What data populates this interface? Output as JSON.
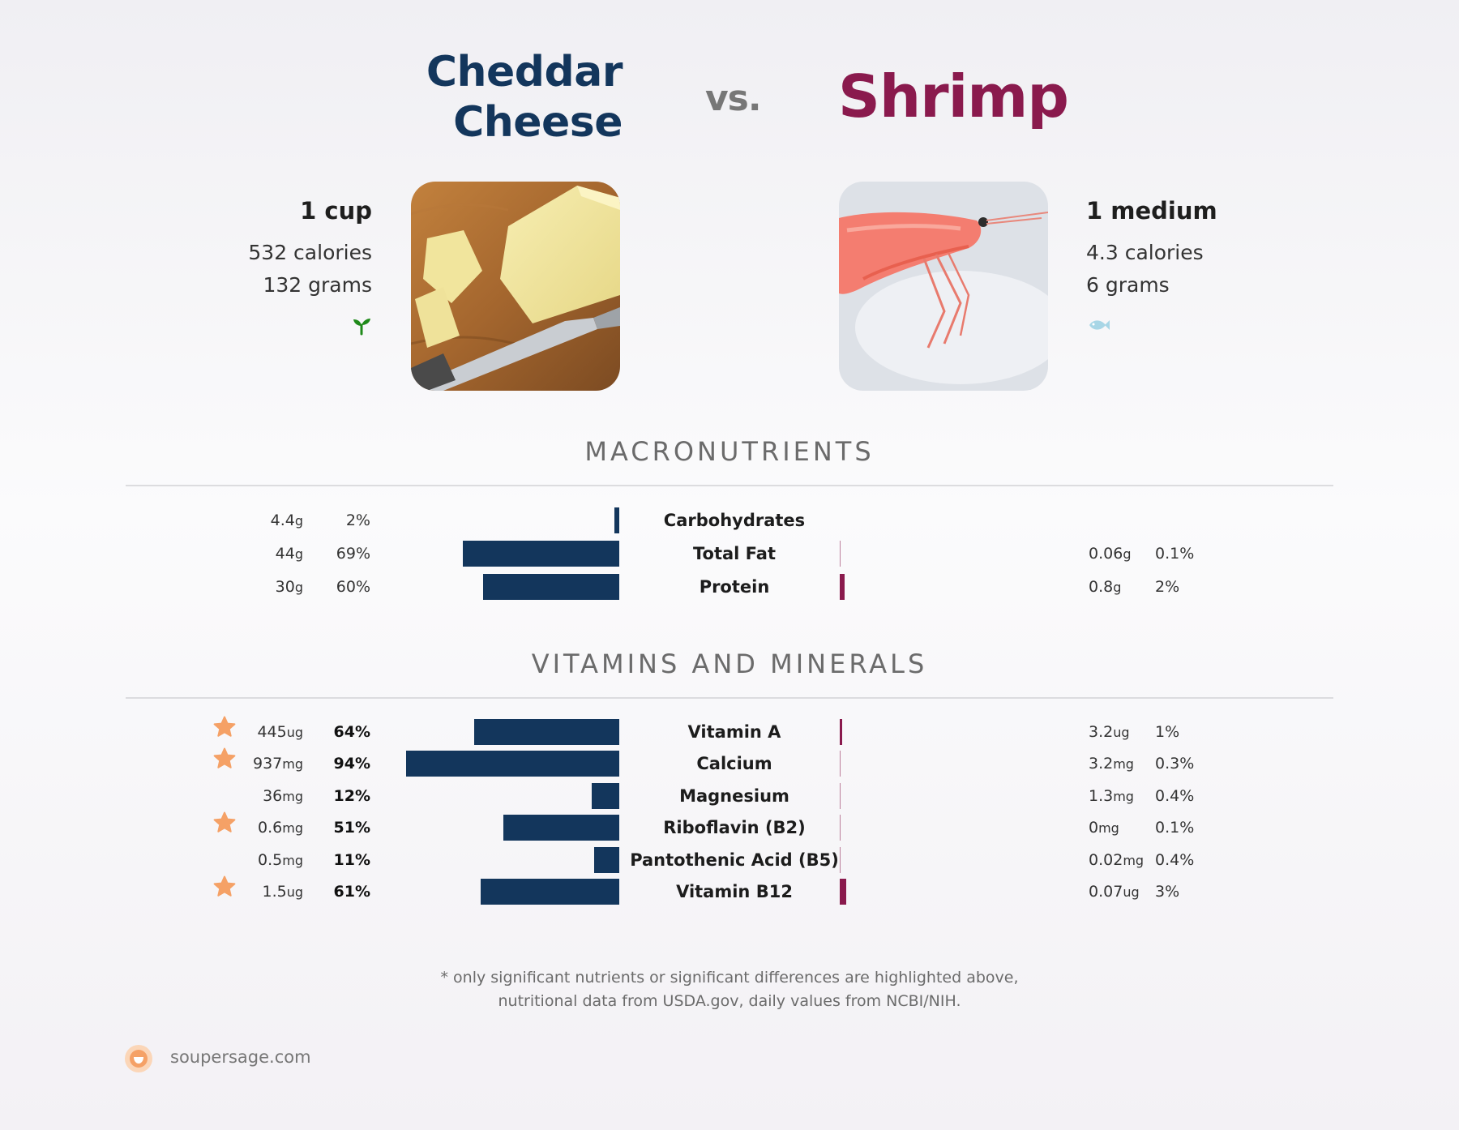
{
  "header": {
    "left_title_line1": "Cheddar",
    "left_title_line2": "Cheese",
    "vs": "vs.",
    "right_title": "Shrimp"
  },
  "colors": {
    "left": "#13365c",
    "right": "#8a1a4d",
    "star": "#f5a166",
    "veg_icon": "#1f8a1a",
    "fish_icon": "#a8d6e6"
  },
  "left_food": {
    "serving": "1 cup",
    "calories": "532 calories",
    "grams": "132 grams",
    "diet_icon": "sprout-icon"
  },
  "right_food": {
    "serving": "1 medium",
    "calories": "4.3 calories",
    "grams": "6 grams",
    "diet_icon": "fish-icon"
  },
  "sections": {
    "macro_title": "MACRONUTRIENTS",
    "vitamin_title": "VITAMINS AND MINERALS"
  },
  "chart_data": {
    "type": "bar",
    "left_series": "Cheddar Cheese",
    "right_series": "Shrimp",
    "macronutrients": [
      {
        "nutrient": "Carbohydrates",
        "left_amount": "4.4",
        "left_unit": "g",
        "left_pct": 2,
        "left_pct_label": "2%",
        "right_amount": "",
        "right_unit": "",
        "right_pct": 0,
        "right_pct_label": "",
        "star": false,
        "bold_pct": false
      },
      {
        "nutrient": "Total Fat",
        "left_amount": "44",
        "left_unit": "g",
        "left_pct": 69,
        "left_pct_label": "69%",
        "right_amount": "0.06",
        "right_unit": "g",
        "right_pct": 0.1,
        "right_pct_label": "0.1%",
        "star": false,
        "bold_pct": false
      },
      {
        "nutrient": "Protein",
        "left_amount": "30",
        "left_unit": "g",
        "left_pct": 60,
        "left_pct_label": "60%",
        "right_amount": "0.8",
        "right_unit": "g",
        "right_pct": 2,
        "right_pct_label": "2%",
        "star": false,
        "bold_pct": false
      }
    ],
    "vitamins": [
      {
        "nutrient": "Vitamin A",
        "left_amount": "445",
        "left_unit": "ug",
        "left_pct": 64,
        "left_pct_label": "64%",
        "right_amount": "3.2",
        "right_unit": "ug",
        "right_pct": 1,
        "right_pct_label": "1%",
        "star": true,
        "bold_pct": true
      },
      {
        "nutrient": "Calcium",
        "left_amount": "937",
        "left_unit": "mg",
        "left_pct": 94,
        "left_pct_label": "94%",
        "right_amount": "3.2",
        "right_unit": "mg",
        "right_pct": 0.3,
        "right_pct_label": "0.3%",
        "star": true,
        "bold_pct": true
      },
      {
        "nutrient": "Magnesium",
        "left_amount": "36",
        "left_unit": "mg",
        "left_pct": 12,
        "left_pct_label": "12%",
        "right_amount": "1.3",
        "right_unit": "mg",
        "right_pct": 0.4,
        "right_pct_label": "0.4%",
        "star": false,
        "bold_pct": true
      },
      {
        "nutrient": "Riboflavin (B2)",
        "left_amount": "0.6",
        "left_unit": "mg",
        "left_pct": 51,
        "left_pct_label": "51%",
        "right_amount": "0",
        "right_unit": "mg",
        "right_pct": 0.1,
        "right_pct_label": "0.1%",
        "star": true,
        "bold_pct": true
      },
      {
        "nutrient": "Pantothenic Acid (B5)",
        "left_amount": "0.5",
        "left_unit": "mg",
        "left_pct": 11,
        "left_pct_label": "11%",
        "right_amount": "0.02",
        "right_unit": "mg",
        "right_pct": 0.4,
        "right_pct_label": "0.4%",
        "star": false,
        "bold_pct": true
      },
      {
        "nutrient": "Vitamin B12",
        "left_amount": "1.5",
        "left_unit": "ug",
        "left_pct": 61,
        "left_pct_label": "61%",
        "right_amount": "0.07",
        "right_unit": "ug",
        "right_pct": 3,
        "right_pct_label": "3%",
        "star": true,
        "bold_pct": true
      }
    ]
  },
  "footer": {
    "note_line1": "* only significant nutrients or significant differences are highlighted above,",
    "note_line2": "nutritional data from USDA.gov, daily values from NCBI/NIH.",
    "brand": "soupersage.com"
  }
}
